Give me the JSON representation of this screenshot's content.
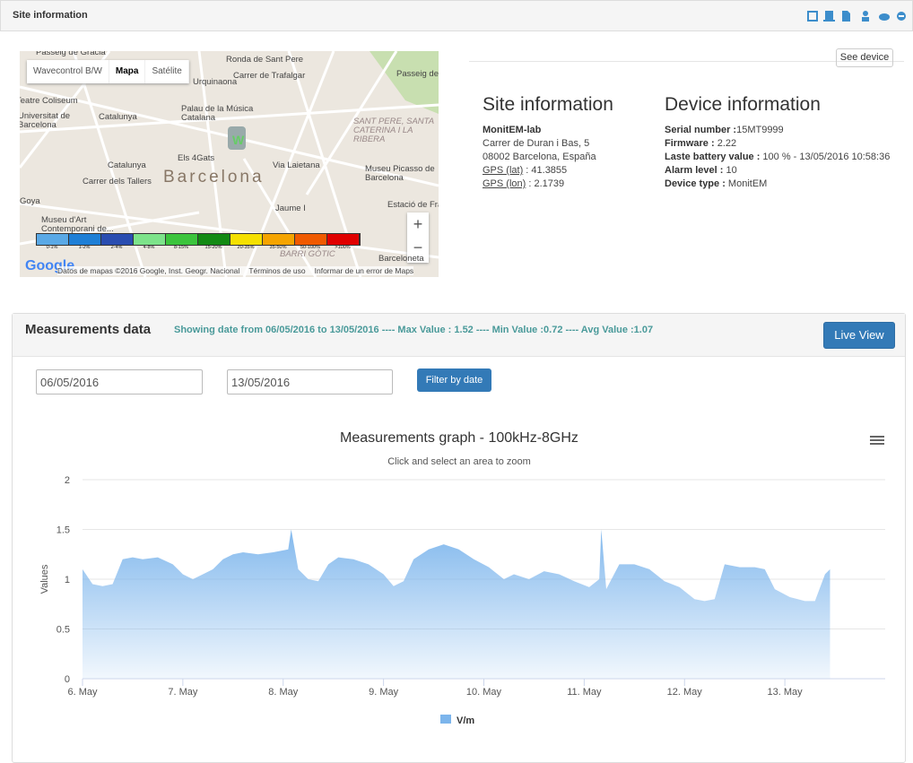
{
  "header": {
    "title": "Site information"
  },
  "map": {
    "tabs": [
      "Wavecontrol B/W",
      "Mapa",
      "Satélite"
    ],
    "labels": [
      "Passeig de Gràcia",
      "Ronda de Sant Pere",
      "Carrer de Trafalgar",
      "Urquinaona",
      "Passeig de Sant Joan",
      "Teatre Coliseum",
      "Universitat de Barcelona",
      "Catalunya",
      "Palau de la Música Catalana",
      "SANT PERE, SANTA CATERINA I LA RIBERA",
      "Els 4Gats",
      "Catalunya",
      "Carrer dels Tallers",
      "Barcelona",
      "Via Laietana",
      "Museu Picasso de Barcelona",
      "Goya",
      "Jaume I",
      "Estació de França",
      "Museu d'Art Contemporani de...",
      "BARRI GÒTIC",
      "Barceloneta"
    ],
    "scale": [
      "0-1%",
      "1-2%",
      "2-4%",
      "4-8%",
      "8-15%",
      "15-20%",
      "20-35%",
      "35-50%",
      "50-100%",
      ">100%"
    ],
    "logo": "Google",
    "attribution": "Datos de mapas ©2016 Google, Inst. Geogr. Nacional",
    "terms": "Términos de uso",
    "report": "Informar de un error de Maps"
  },
  "see_device": "See device",
  "site": {
    "heading": "Site information",
    "name": "MonitEM-lab",
    "address": [
      "Carrer de Duran i Bas, 5",
      "08002 Barcelona, España"
    ],
    "gps": [
      {
        "label": "GPS (lat)",
        "value": " : 41.3855"
      },
      {
        "label": "GPS (lon)",
        "value": " : 2.1739"
      }
    ]
  },
  "device": {
    "heading": "Device information",
    "fields": [
      {
        "label": "Serial number :",
        "value": "15MT9999"
      },
      {
        "label": "Firmware :",
        "value": " 2.22"
      },
      {
        "label": "Laste battery value :",
        "value": " 100 % - 13/05/2016 10:58:36"
      },
      {
        "label": "Alarm level :",
        "value": " 10"
      },
      {
        "label": "Device type :",
        "value": " MonitEM"
      }
    ]
  },
  "measurements": {
    "title": "Measurements data",
    "summary": "Showing date from 06/05/2016 to 13/05/2016 ---- Max Value : 1.52 ---- Min Value :0.72 ---- Avg Value :1.07",
    "live_view": "Live View",
    "from": "06/05/2016",
    "to": "13/05/2016",
    "filter": "Filter by date"
  },
  "chart_data": {
    "type": "area",
    "title": "Measurements graph - 100kHz-8GHz",
    "subtitle": "Click and select an area to zoom",
    "y_label": "Values",
    "x": [
      6.0,
      6.1,
      6.2,
      6.3,
      6.4,
      6.5,
      6.6,
      6.75,
      6.9,
      7.0,
      7.1,
      7.2,
      7.3,
      7.4,
      7.5,
      7.6,
      7.75,
      7.9,
      8.05,
      8.08,
      8.15,
      8.25,
      8.35,
      8.45,
      8.55,
      8.7,
      8.85,
      9.0,
      9.1,
      9.2,
      9.3,
      9.45,
      9.6,
      9.75,
      9.9,
      10.05,
      10.2,
      10.3,
      10.45,
      10.6,
      10.75,
      10.9,
      11.05,
      11.15,
      11.17,
      11.22,
      11.35,
      11.5,
      11.65,
      11.8,
      11.95,
      12.1,
      12.2,
      12.3,
      12.4,
      12.55,
      12.7,
      12.8,
      12.9,
      13.05,
      13.2,
      13.3,
      13.4,
      13.45
    ],
    "series": [
      {
        "name": "V/m",
        "color": "#7cb5ec",
        "values": [
          1.1,
          0.95,
          0.93,
          0.95,
          1.2,
          1.22,
          1.2,
          1.22,
          1.15,
          1.05,
          1.0,
          1.05,
          1.1,
          1.2,
          1.25,
          1.27,
          1.25,
          1.27,
          1.3,
          1.5,
          1.1,
          1.0,
          0.98,
          1.15,
          1.22,
          1.2,
          1.15,
          1.05,
          0.93,
          0.98,
          1.2,
          1.3,
          1.35,
          1.3,
          1.2,
          1.12,
          1.0,
          1.05,
          1.0,
          1.08,
          1.05,
          0.98,
          0.92,
          1.0,
          1.5,
          0.9,
          1.15,
          1.15,
          1.1,
          0.98,
          0.92,
          0.8,
          0.78,
          0.8,
          1.15,
          1.12,
          1.12,
          1.1,
          0.9,
          0.82,
          0.78,
          0.78,
          1.05,
          1.1
        ]
      }
    ],
    "xlim": [
      6,
      14
    ],
    "xticks": [
      {
        "value": 6,
        "label": "6. May"
      },
      {
        "value": 7,
        "label": "7. May"
      },
      {
        "value": 8,
        "label": "8. May"
      },
      {
        "value": 9,
        "label": "9. May"
      },
      {
        "value": 10,
        "label": "10. May"
      },
      {
        "value": 11,
        "label": "11. May"
      },
      {
        "value": 12,
        "label": "12. May"
      },
      {
        "value": 13,
        "label": "13. May"
      }
    ],
    "ylim": [
      0,
      2
    ],
    "yticks": [
      0,
      0.5,
      1,
      1.5,
      2
    ],
    "grid": true,
    "legend": "bottom"
  }
}
